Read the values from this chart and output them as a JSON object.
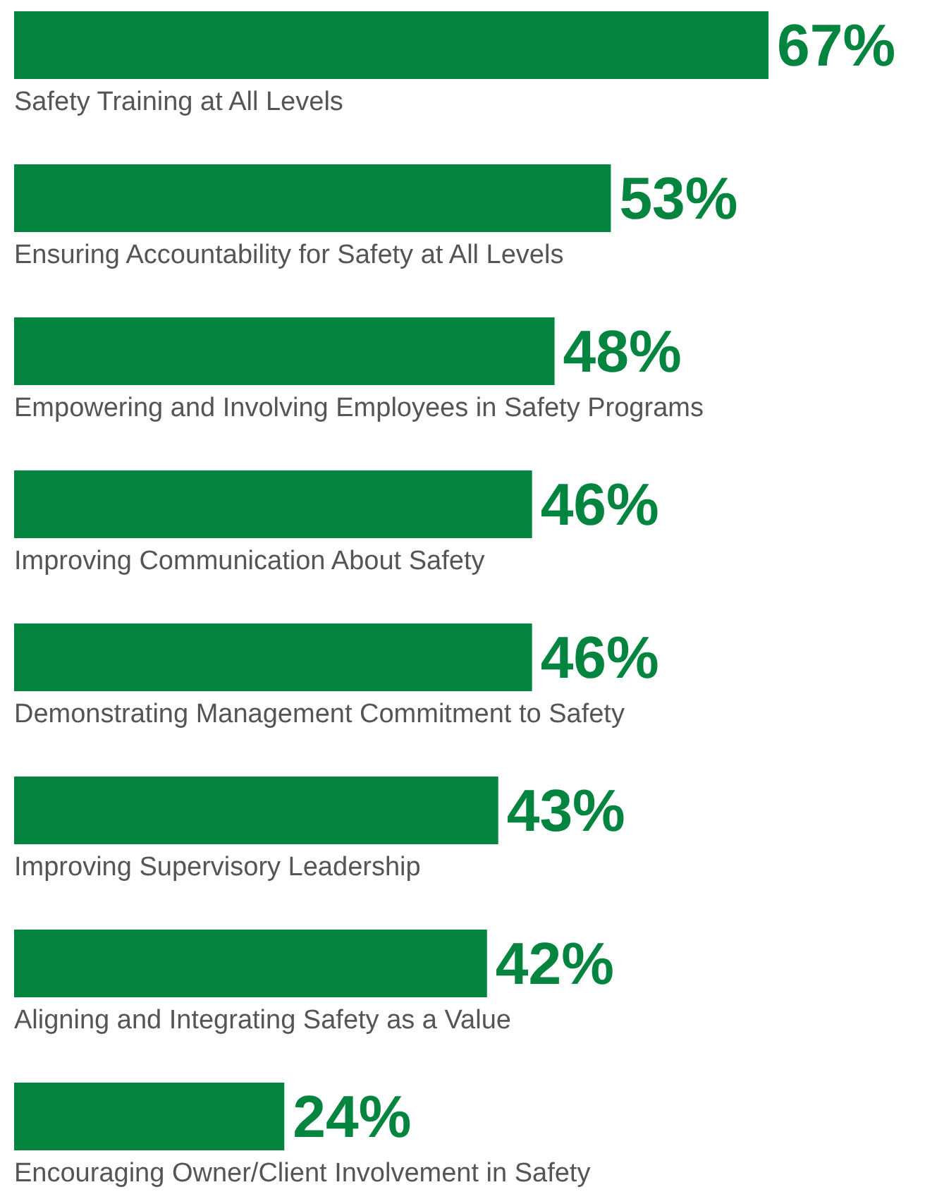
{
  "chart_data": {
    "type": "bar",
    "orientation": "horizontal",
    "categories": [
      "Safety Training at All Levels",
      "Ensuring Accountability for Safety at All Levels",
      "Empowering and Involving Employees in Safety Programs",
      "Improving Communication About Safety",
      "Demonstrating Management Commitment to Safety",
      "Improving Supervisory Leadership",
      "Aligning and Integrating Safety as a Value",
      "Encouraging Owner/Client Involvement in Safety"
    ],
    "values": [
      67,
      53,
      48,
      46,
      46,
      43,
      42,
      24
    ],
    "value_labels": [
      "67%",
      "53%",
      "48%",
      "46%",
      "46%",
      "43%",
      "42%",
      "24%"
    ],
    "color": "#03843f"
  }
}
